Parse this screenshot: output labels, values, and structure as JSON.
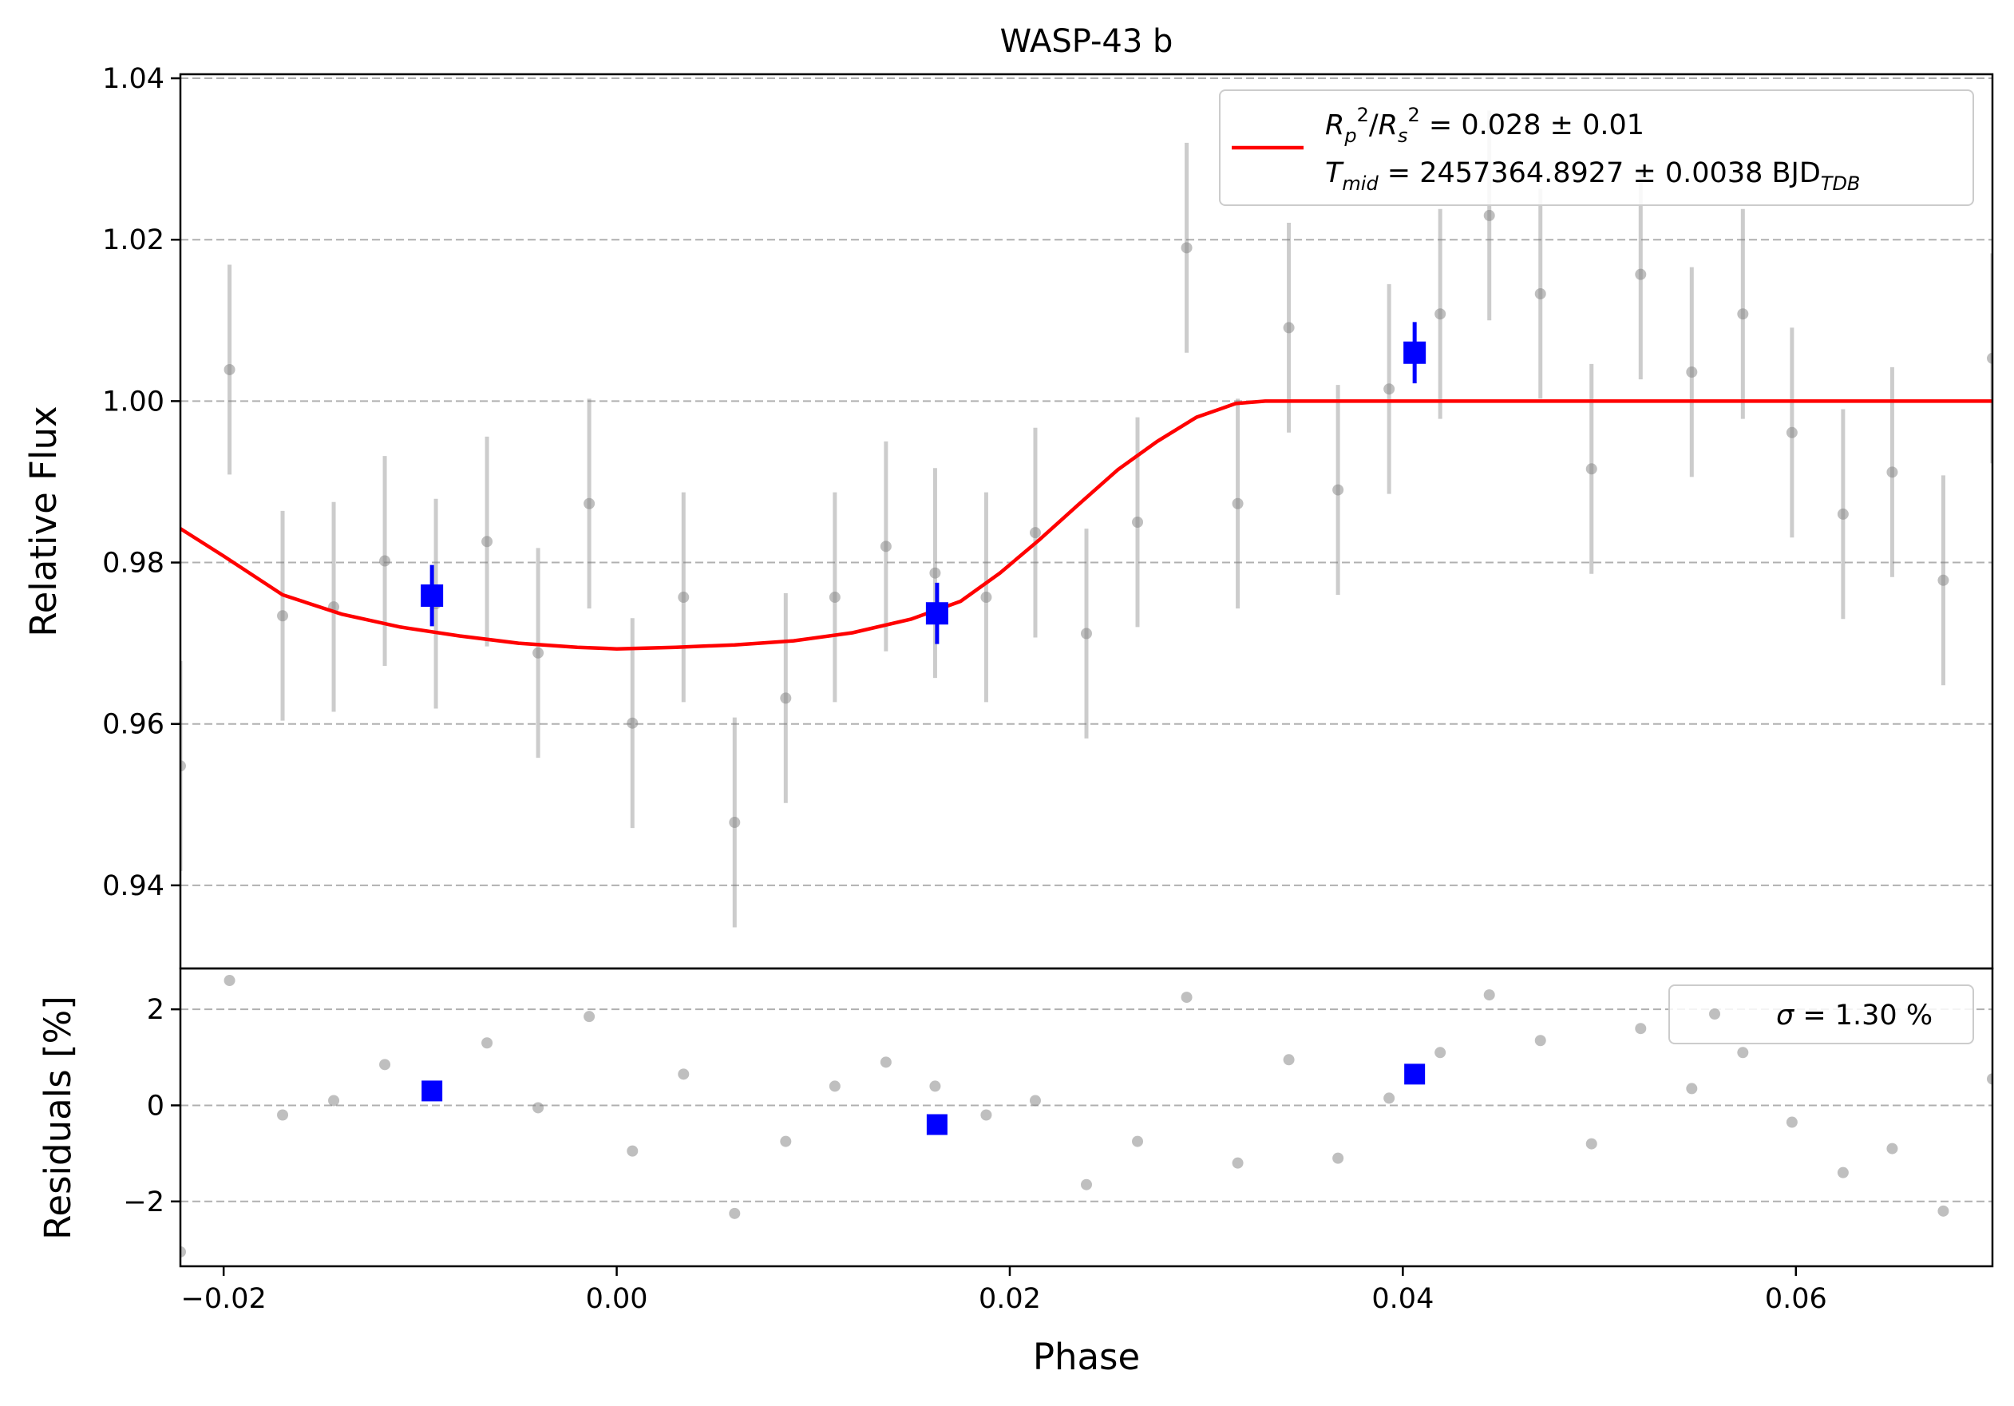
{
  "chart_data": [
    {
      "type": "scatter",
      "panel": "main",
      "title": "WASP-43 b",
      "xlabel": "",
      "ylabel": "Relative Flux",
      "xlim": [
        -0.0222,
        0.07
      ],
      "ylim": [
        0.9297,
        1.0405
      ],
      "yticks": [
        0.94,
        0.96,
        0.98,
        1.0,
        1.02,
        1.04
      ],
      "ytick_labels": [
        "0.94",
        "0.96",
        "0.98",
        "1.00",
        "1.02",
        "1.04"
      ],
      "grid": "y-dashed",
      "legend": {
        "placement": "top-right",
        "line1": {
          "lhs": "R_p^2/R_s^2",
          "value": " = 0.028 ± 0.01"
        },
        "line2": {
          "lhs": "T_mid",
          "value": " = 2457364.8927 ± 0.0038 BJD",
          "sub": "TDB"
        }
      },
      "series": [
        {
          "kind": "unbinned",
          "color": "#808080",
          "x": [
            -0.0222,
            -0.0197,
            -0.017,
            -0.0144,
            -0.0118,
            -0.0092,
            -0.0066,
            -0.004,
            -0.0014,
            0.0008,
            0.0034,
            0.006,
            0.0086,
            0.0111,
            0.0137,
            0.0162,
            0.0188,
            0.0213,
            0.0239,
            0.0265,
            0.029,
            0.0316,
            0.0342,
            0.0367,
            0.0393,
            0.0419,
            0.0444,
            0.047,
            0.0496,
            0.0521,
            0.0547,
            0.0573,
            0.0598,
            0.0624,
            0.0649,
            0.0675,
            0.07
          ],
          "y": [
            0.9548,
            1.0039,
            0.9734,
            0.9745,
            0.9802,
            0.9749,
            0.9826,
            0.9688,
            0.9873,
            0.9601,
            0.9757,
            0.9478,
            0.9632,
            0.9757,
            0.982,
            0.9787,
            0.9757,
            0.9837,
            0.9712,
            0.985,
            1.019,
            0.9873,
            1.0091,
            0.989,
            1.0015,
            1.0108,
            1.023,
            1.0133,
            0.9916,
            1.0157,
            1.0036,
            1.0108,
            0.9961,
            0.986,
            0.9912,
            0.9778,
            1.0053
          ],
          "yerr": 0.013
        },
        {
          "kind": "binned",
          "color": "#0000ff",
          "x": [
            -0.0094,
            0.0163,
            0.0406
          ],
          "y": [
            0.9759,
            0.9737,
            1.006
          ],
          "yerr": [
            0.0038,
            0.0038,
            0.0038
          ]
        },
        {
          "kind": "model",
          "color": "#ff0000",
          "x": [
            -0.0222,
            -0.02,
            -0.017,
            -0.014,
            -0.011,
            -0.008,
            -0.005,
            -0.002,
            0.0,
            0.003,
            0.006,
            0.009,
            0.012,
            0.015,
            0.0175,
            0.0195,
            0.0215,
            0.0235,
            0.0255,
            0.0275,
            0.0295,
            0.0315,
            0.033,
            0.035,
            0.07
          ],
          "y": [
            0.9842,
            0.9808,
            0.976,
            0.9736,
            0.972,
            0.9709,
            0.97,
            0.9695,
            0.9693,
            0.9695,
            0.9698,
            0.9703,
            0.9713,
            0.973,
            0.9752,
            0.9787,
            0.9828,
            0.9872,
            0.9915,
            0.995,
            0.998,
            0.9997,
            1.0,
            1.0,
            1.0
          ]
        }
      ]
    },
    {
      "type": "scatter",
      "panel": "residuals",
      "xlabel": "Phase",
      "ylabel": "Residuals [%]",
      "xlim": [
        -0.0222,
        0.07
      ],
      "ylim": [
        -3.35,
        2.85
      ],
      "xticks": [
        -0.02,
        0.0,
        0.02,
        0.04,
        0.06
      ],
      "xtick_labels": [
        "−0.02",
        "0.00",
        "0.02",
        "0.04",
        "0.06"
      ],
      "yticks": [
        -2,
        0,
        2
      ],
      "ytick_labels": [
        "−2",
        "0",
        "2"
      ],
      "grid": "y-dashed",
      "legend": {
        "placement": "top-right",
        "sigma_symbol": "σ",
        "value": " = 1.30 %"
      },
      "series": [
        {
          "kind": "unbinned",
          "color": "#808080",
          "x": [
            -0.0222,
            -0.0197,
            -0.017,
            -0.0144,
            -0.0118,
            -0.0066,
            -0.004,
            -0.0014,
            0.0008,
            0.0034,
            0.006,
            0.0086,
            0.0111,
            0.0137,
            0.0162,
            0.0188,
            0.0213,
            0.0239,
            0.0265,
            0.029,
            0.0316,
            0.0342,
            0.0367,
            0.0393,
            0.0419,
            0.0444,
            0.047,
            0.0496,
            0.0521,
            0.0547,
            0.0573,
            0.0598,
            0.0624,
            0.0649,
            0.0675,
            0.07
          ],
          "y": [
            -3.05,
            2.6,
            -0.2,
            0.1,
            0.85,
            1.3,
            -0.05,
            1.85,
            -0.95,
            0.65,
            -2.25,
            -0.75,
            0.4,
            0.9,
            0.4,
            -0.2,
            0.1,
            -1.65,
            -0.75,
            2.25,
            -1.2,
            0.95,
            -1.1,
            0.15,
            1.1,
            2.3,
            1.35,
            -0.8,
            1.6,
            0.35,
            1.1,
            -0.35,
            -1.4,
            -0.9,
            -2.2,
            0.55
          ]
        },
        {
          "kind": "binned",
          "color": "#0000ff",
          "x": [
            -0.0094,
            0.0163,
            0.0406
          ],
          "y": [
            0.3,
            -0.4,
            0.65
          ]
        }
      ]
    }
  ]
}
